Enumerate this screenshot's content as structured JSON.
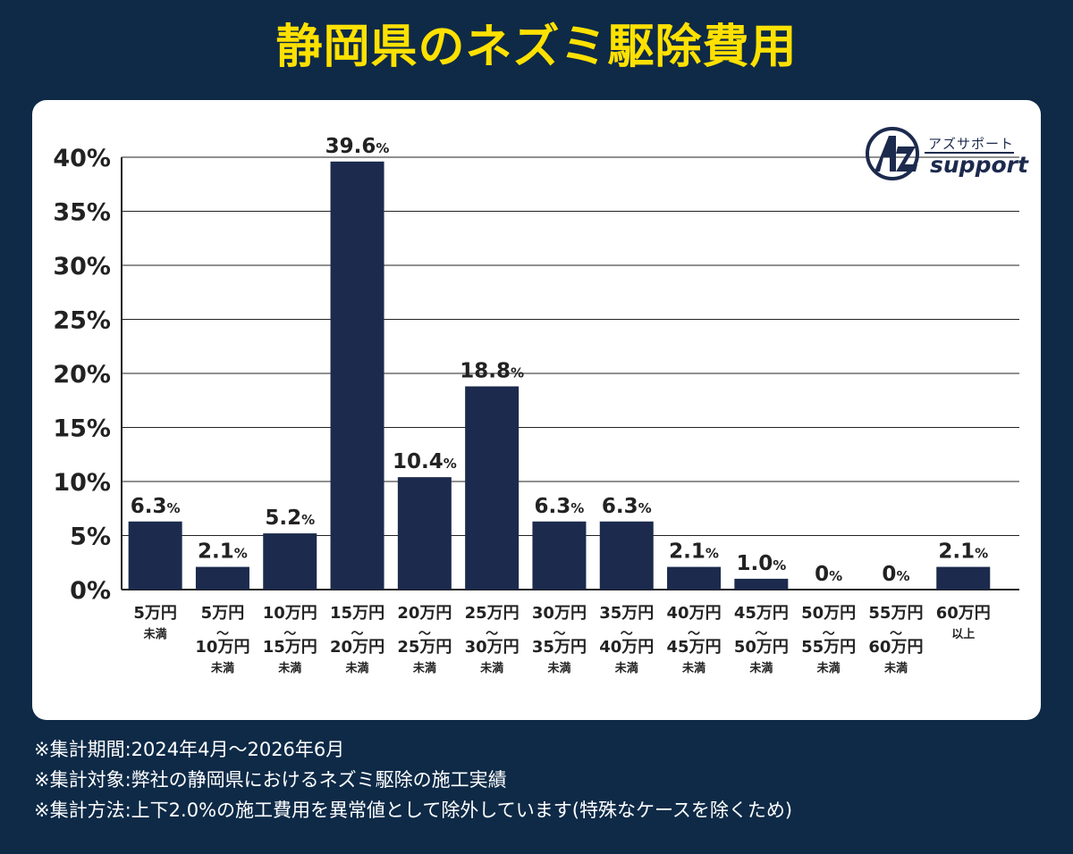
{
  "title": "静岡県のネズミ駆除費用",
  "logo": {
    "jp_text": "アズサポート",
    "en_text": "support"
  },
  "notes": [
    "※集計期間:2024年4月〜2026年6月",
    "※集計対象:弊社の静岡県におけるネズミ駆除の施工実績",
    "※集計方法:上下2.0%の施工費用を異常値として除外しています(特殊なケースを除くため)"
  ],
  "colors": {
    "background": "#0e2a47",
    "title": "#ffe100",
    "bar": "#1c2a4d",
    "text": "#222222",
    "grid": "#222222"
  },
  "chart_data": {
    "type": "bar",
    "yticks": [
      "0%",
      "5%",
      "10%",
      "15%",
      "20%",
      "25%",
      "30%",
      "35%",
      "40%"
    ],
    "ylim": [
      0,
      40
    ],
    "grid": true,
    "categories": [
      [
        "5万円",
        "未満"
      ],
      [
        "5万円",
        "〜",
        "10万円",
        "未満"
      ],
      [
        "10万円",
        "〜",
        "15万円",
        "未満"
      ],
      [
        "15万円",
        "〜",
        "20万円",
        "未満"
      ],
      [
        "20万円",
        "〜",
        "25万円",
        "未満"
      ],
      [
        "25万円",
        "〜",
        "30万円",
        "未満"
      ],
      [
        "30万円",
        "〜",
        "35万円",
        "未満"
      ],
      [
        "35万円",
        "〜",
        "40万円",
        "未満"
      ],
      [
        "40万円",
        "〜",
        "45万円",
        "未満"
      ],
      [
        "45万円",
        "〜",
        "50万円",
        "未満"
      ],
      [
        "50万円",
        "〜",
        "55万円",
        "未満"
      ],
      [
        "55万円",
        "〜",
        "60万円",
        "未満"
      ],
      [
        "60万円",
        "以上"
      ]
    ],
    "values": [
      6.3,
      2.1,
      5.2,
      39.6,
      10.4,
      18.8,
      6.3,
      6.3,
      2.1,
      1.0,
      0,
      0,
      2.1
    ],
    "value_labels": [
      "6.3",
      "2.1",
      "5.2",
      "39.6",
      "10.4",
      "18.8",
      "6.3",
      "6.3",
      "2.1",
      "1.0",
      "0",
      "0",
      "2.1"
    ],
    "value_unit": "%"
  }
}
